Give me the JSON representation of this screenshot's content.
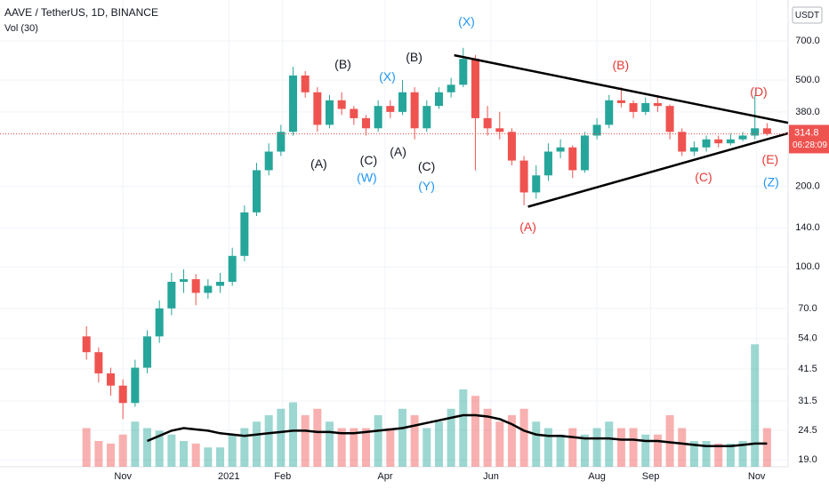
{
  "chart_data": {
    "type": "candlestick",
    "title": "AAVE / TetherUS, 1D, BINANCE",
    "volume_title": "Vol (30)",
    "currency": "USDT",
    "log_scale": true,
    "up_color": "#26a69a",
    "down_color": "#ef5350",
    "xlim": [
      -70.8,
      383.1
    ],
    "xticks": [
      {
        "value": 0,
        "label": "Nov"
      },
      {
        "value": 61,
        "label": "2021"
      },
      {
        "value": 92,
        "label": "Feb"
      },
      {
        "value": 151,
        "label": "Apr"
      },
      {
        "value": 212,
        "label": "Jun"
      },
      {
        "value": 273,
        "label": "Aug"
      },
      {
        "value": 304,
        "label": "Sep"
      },
      {
        "value": 365,
        "label": "Nov"
      }
    ],
    "ylim": [
      17.9,
      996
    ],
    "yticks": [
      {
        "value": 700,
        "label": "700.0"
      },
      {
        "value": 500,
        "label": "500.0"
      },
      {
        "value": 380,
        "label": "380.0"
      },
      {
        "value": 200,
        "label": "200.0"
      },
      {
        "value": 140,
        "label": "140.0"
      },
      {
        "value": 100,
        "label": "100.0"
      },
      {
        "value": 70,
        "label": "70.0"
      },
      {
        "value": 54,
        "label": "54.0"
      },
      41.5,
      31.5,
      24.5,
      {
        "value": 19,
        "label": "19.0"
      }
    ],
    "x": [
      -21,
      -14,
      -7,
      0,
      7,
      14,
      21,
      28,
      35,
      42,
      49,
      56,
      63,
      70,
      77,
      84,
      91,
      98,
      105,
      112,
      119,
      126,
      133,
      140,
      147,
      154,
      161,
      168,
      175,
      182,
      189,
      196,
      203,
      210,
      217,
      224,
      231,
      238,
      245,
      252,
      259,
      266,
      273,
      280,
      287,
      294,
      301,
      308,
      315,
      322,
      329,
      336,
      343,
      350,
      357,
      364,
      371
    ],
    "open": [
      55,
      48,
      40,
      36,
      31,
      42,
      55,
      70,
      88,
      90,
      80,
      85,
      88,
      110,
      160,
      230,
      270,
      320,
      520,
      450,
      340,
      420,
      390,
      360,
      330,
      400,
      380,
      450,
      330,
      400,
      450,
      480,
      600,
      360,
      330,
      320,
      250,
      190,
      220,
      270,
      280,
      230,
      310,
      340,
      420,
      410,
      380,
      410,
      400,
      320,
      270,
      280,
      300,
      290,
      300,
      310,
      330
    ],
    "high": [
      60,
      50,
      42,
      38,
      45,
      58,
      75,
      95,
      98,
      94,
      90,
      95,
      118,
      170,
      245,
      290,
      340,
      560,
      540,
      470,
      440,
      450,
      400,
      370,
      420,
      420,
      500,
      470,
      420,
      470,
      510,
      660,
      620,
      400,
      380,
      330,
      260,
      240,
      290,
      300,
      285,
      320,
      360,
      440,
      470,
      420,
      430,
      440,
      405,
      330,
      295,
      310,
      310,
      315,
      320,
      440,
      345
    ],
    "low": [
      45,
      37,
      33,
      27,
      30,
      40,
      52,
      66,
      80,
      72,
      76,
      80,
      85,
      105,
      155,
      220,
      260,
      310,
      430,
      320,
      330,
      370,
      340,
      310,
      320,
      360,
      370,
      300,
      320,
      390,
      430,
      470,
      230,
      310,
      300,
      240,
      170,
      180,
      210,
      255,
      215,
      225,
      300,
      330,
      395,
      360,
      370,
      380,
      300,
      260,
      260,
      270,
      280,
      285,
      295,
      300,
      310
    ],
    "close": [
      48,
      40,
      36,
      31,
      42,
      55,
      70,
      88,
      90,
      80,
      85,
      88,
      110,
      160,
      230,
      270,
      320,
      520,
      450,
      340,
      420,
      390,
      360,
      330,
      400,
      380,
      450,
      330,
      400,
      450,
      480,
      600,
      360,
      330,
      320,
      250,
      190,
      220,
      270,
      280,
      230,
      310,
      340,
      420,
      410,
      380,
      410,
      400,
      320,
      270,
      280,
      300,
      290,
      300,
      310,
      330,
      314.8
    ],
    "volume": [
      30,
      20,
      18,
      25,
      35,
      30,
      28,
      25,
      20,
      18,
      15,
      15,
      25,
      30,
      35,
      40,
      45,
      50,
      40,
      45,
      35,
      30,
      30,
      30,
      40,
      30,
      45,
      40,
      30,
      35,
      45,
      60,
      55,
      45,
      35,
      40,
      45,
      35,
      30,
      25,
      30,
      25,
      30,
      35,
      30,
      30,
      25,
      25,
      40,
      30,
      20,
      20,
      18,
      18,
      20,
      95,
      30
    ],
    "volume_ma": [
      null,
      null,
      null,
      null,
      null,
      20,
      24,
      28,
      30,
      29,
      28,
      26,
      25,
      24,
      25,
      26,
      27,
      28,
      28,
      27,
      27,
      26,
      26,
      27,
      28,
      29,
      30,
      32,
      34,
      36,
      38,
      40,
      40,
      39,
      37,
      33,
      28,
      25,
      24,
      24,
      23,
      22,
      22,
      22,
      21,
      21,
      20,
      20,
      19,
      18,
      17,
      16,
      16,
      16,
      17,
      18,
      18
    ],
    "volume_lim": [
      0,
      100
    ],
    "last_price": 314.8,
    "last_price_label": "314.8",
    "countdown": "06:28:09",
    "trendlines": [
      {
        "x": [
          190.8,
          383.1
        ],
        "y": [
          619,
          346
        ]
      },
      {
        "x": [
          233.3,
          383.1
        ],
        "y": [
          168,
          316
        ]
      }
    ],
    "annotations": [
      {
        "text": "(A)",
        "x": 112.8,
        "y": 241,
        "color": "#131722"
      },
      {
        "text": "(B)",
        "x": 126.7,
        "y": 569,
        "color": "#131722"
      },
      {
        "text": "(C)",
        "x": 141.5,
        "y": 249,
        "color": "#131722"
      },
      {
        "text": "(W)",
        "x": 140.5,
        "y": 214,
        "color": "#2196f3"
      },
      {
        "text": "(X)",
        "x": 152.3,
        "y": 511,
        "color": "#2196f3"
      },
      {
        "text": "(A)",
        "x": 158.5,
        "y": 267,
        "color": "#131722"
      },
      {
        "text": "(B)",
        "x": 167.7,
        "y": 604,
        "color": "#131722"
      },
      {
        "text": "(C)",
        "x": 174.9,
        "y": 236,
        "color": "#131722"
      },
      {
        "text": "(Y)",
        "x": 174.9,
        "y": 199,
        "color": "#2196f3"
      },
      {
        "text": "(X)",
        "x": 197.9,
        "y": 822,
        "color": "#2196f3"
      },
      {
        "text": "(B)",
        "x": 286.7,
        "y": 565,
        "color": "#e53935"
      },
      {
        "text": "(A)",
        "x": 233.3,
        "y": 140,
        "color": "#e53935"
      },
      {
        "text": "(C)",
        "x": 334.4,
        "y": 215,
        "color": "#e53935"
      },
      {
        "text": "(D)",
        "x": 366.2,
        "y": 449,
        "color": "#e53935"
      },
      {
        "text": "(E)",
        "x": 372.8,
        "y": 251,
        "color": "#e53935"
      },
      {
        "text": "(Z)",
        "x": 373.3,
        "y": 206,
        "color": "#2196f3"
      }
    ]
  }
}
